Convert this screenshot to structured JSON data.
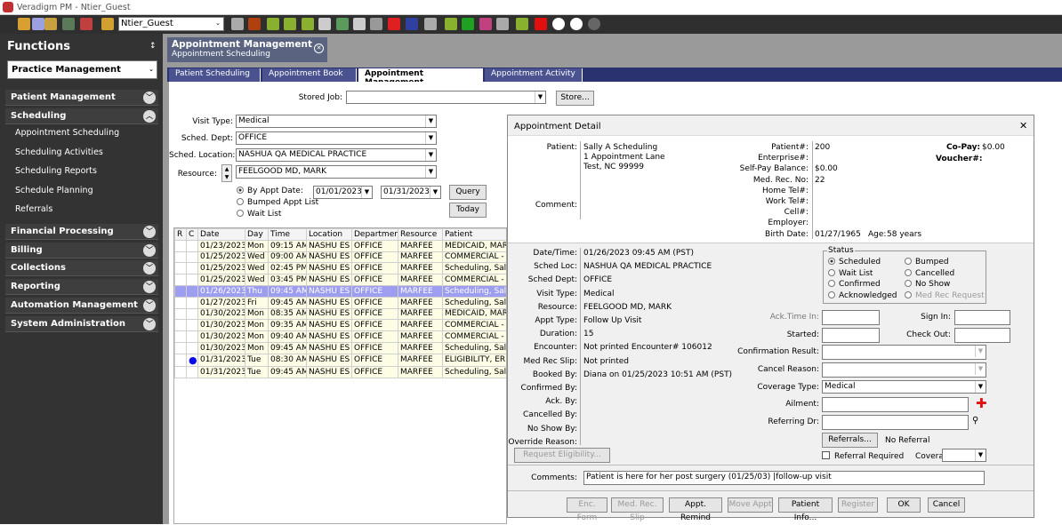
{
  "window": {
    "title": "Veradigm PM - Ntier_Guest"
  },
  "toolbar": {
    "user": "Ntier_Guest",
    "icons": [
      "open-folder-icon",
      "notes-icon",
      "folder-icon",
      "gear-icon",
      "settings-icon",
      "lock-icon",
      "stamp-icon",
      "cog-icon",
      "id-card-icon",
      "refresh-icon",
      "briefcase-icon",
      "edit-icon",
      "checkbook-icon",
      "document-icon",
      "transfer-icon",
      "medical-cross-icon",
      "rx-icon",
      "phone-icon",
      "h-document-icon",
      "calculator-icon",
      "chart-icon",
      "camera-icon",
      "diamond-icon",
      "msp-icon",
      "d-circle-icon",
      "t-circle-icon",
      "dollar-circle-icon"
    ]
  },
  "sidebar": {
    "title": "Functions",
    "pin": "↕",
    "selector": "Practice Management",
    "sections": [
      {
        "label": "Patient Management"
      },
      {
        "label": "Scheduling"
      },
      {
        "label": "Financial Processing"
      },
      {
        "label": "Billing"
      },
      {
        "label": "Collections"
      },
      {
        "label": "Reporting"
      },
      {
        "label": "Automation Management"
      },
      {
        "label": "System Administration"
      }
    ],
    "items": [
      "Appointment Scheduling",
      "Scheduling Activities",
      "Scheduling Reports",
      "Schedule Planning",
      "Referrals"
    ]
  },
  "doc_tab": {
    "title": "Appointment Management",
    "subtitle": "Appointment Scheduling"
  },
  "tabs": [
    "Patient Scheduling",
    "Appointment Book",
    "Appointment Management",
    "Appointment Activity"
  ],
  "form": {
    "stored_job_label": "Stored Job:",
    "stored_job": "",
    "store_btn": "Store...",
    "visit_type_label": "Visit Type:",
    "visit_type": "Medical",
    "dept_label": "Sched. Dept:",
    "dept": "OFFICE",
    "location_label": "Sched. Location:",
    "location": "NASHUA QA MEDICAL PRACTICE",
    "resource_label": "Resource:",
    "resource": "FEELGOOD MD, MARK",
    "radios": [
      "By Appt Date:",
      "Bumped Appt List",
      "Wait List"
    ],
    "date_from": "01/01/2023",
    "date_to": "01/31/2023",
    "query_btn": "Query",
    "today_btn": "Today"
  },
  "grid": {
    "columns": [
      "R",
      "C",
      "Date",
      "Day",
      "Time",
      "Location",
      "Department",
      "Resource",
      "Patient"
    ],
    "rows": [
      [
        "",
        "",
        "01/23/2023",
        "Mon",
        "09:15 AM",
        "NASHU ES",
        "OFFICE",
        "MARFEE",
        "MEDICAID, MARTHA"
      ],
      [
        "",
        "",
        "01/25/2023",
        "Wed",
        "09:00 AM",
        "NASHU ES",
        "OFFICE",
        "MARFEE",
        "COMMERCIAL - IND"
      ],
      [
        "",
        "",
        "01/25/2023",
        "Wed",
        "02:45 PM",
        "NASHU ES",
        "OFFICE",
        "MARFEE",
        "Scheduling, Sally A"
      ],
      [
        "",
        "",
        "01/25/2023",
        "Wed",
        "03:45 PM",
        "NASHU ES",
        "OFFICE",
        "MARFEE",
        "COMMERCIAL - IND"
      ],
      [
        "",
        "",
        "01/26/2023",
        "Thu",
        "09:45 AM",
        "NASHU ES",
        "OFFICE",
        "MARFEE",
        "Scheduling, Sally A"
      ],
      [
        "",
        "",
        "01/27/2023",
        "Fri",
        "09:45 AM",
        "NASHU ES",
        "OFFICE",
        "MARFEE",
        "Scheduling, Sally A"
      ],
      [
        "",
        "",
        "01/30/2023",
        "Mon",
        "08:35 AM",
        "NASHU ES",
        "OFFICE",
        "MARFEE",
        "MEDICAID, MARTHA"
      ],
      [
        "",
        "",
        "01/30/2023",
        "Mon",
        "09:35 AM",
        "NASHU ES",
        "OFFICE",
        "MARFEE",
        "COMMERCIAL - IND"
      ],
      [
        "",
        "",
        "01/30/2023",
        "Mon",
        "09:40 AM",
        "NASHU ES",
        "OFFICE",
        "MARFEE",
        "COMMERCIAL - IND"
      ],
      [
        "",
        "",
        "01/30/2023",
        "Mon",
        "09:45 AM",
        "NASHU ES",
        "OFFICE",
        "MARFEE",
        "Scheduling, Sally A"
      ],
      [
        "",
        "●",
        "01/31/2023",
        "Tue",
        "08:30 AM",
        "NASHU ES",
        "OFFICE",
        "MARFEE",
        "ELIGIBILITY, ERIC E"
      ],
      [
        "",
        "",
        "01/31/2023",
        "Tue",
        "09:45 AM",
        "NASHU ES",
        "OFFICE",
        "MARFEE",
        "Scheduling, Sally A"
      ]
    ],
    "selected_row": 4
  },
  "dialog": {
    "title": "Appointment Detail",
    "close": "✕",
    "patient_label": "Patient:",
    "patient_lines": [
      "Sally A Scheduling",
      "1 Appointment Lane",
      "Test, NC 99999"
    ],
    "comment_label": "Comment:",
    "info": [
      [
        "Patient#:",
        "200"
      ],
      [
        "Enterprise#:",
        ""
      ],
      [
        "Self-Pay Balance:",
        "$0.00"
      ],
      [
        "Med. Rec. No:",
        "22"
      ],
      [
        "Home Tel#:",
        ""
      ],
      [
        "Work Tel#:",
        ""
      ],
      [
        "Cell#:",
        ""
      ],
      [
        "Employer:",
        ""
      ],
      [
        "Birth Date:",
        "01/27/1965"
      ]
    ],
    "age_label": "Age:",
    "age": "58 years",
    "copay_label": "Co-Pay:",
    "copay": "$0.00",
    "voucher_label": "Voucher#:",
    "details": [
      [
        "Date/Time:",
        "01/26/2023 09:45 AM (PST)"
      ],
      [
        "Sched Loc:",
        "NASHUA QA MEDICAL PRACTICE"
      ],
      [
        "Sched Dept:",
        "OFFICE"
      ],
      [
        "Visit Type:",
        "Medical"
      ],
      [
        "Resource:",
        "FEELGOOD MD, MARK"
      ],
      [
        "Appt Type:",
        "Follow Up Visit"
      ],
      [
        "Duration:",
        "15"
      ],
      [
        "Encounter:",
        "Not printed Encounter# 106012"
      ],
      [
        "Med Rec Slip:",
        "Not printed"
      ],
      [
        "Booked By:",
        "Diana on 01/25/2023 10:51 AM (PST)"
      ],
      [
        "Confirmed By:",
        ""
      ],
      [
        "Ack. By:",
        ""
      ],
      [
        "Cancelled By:",
        ""
      ],
      [
        "No Show By:",
        ""
      ],
      [
        "Override Reason:",
        ""
      ]
    ],
    "request_elig": "Request Eligibility...",
    "status_label": "Status",
    "status": [
      "Scheduled",
      "Bumped",
      "Wait List",
      "Cancelled",
      "Confirmed",
      "No Show",
      "Acknowledged",
      "Med Rec Request"
    ],
    "status_selected": "Scheduled",
    "ack_time_label": "Ack.Time In:",
    "sign_in_label": "Sign In:",
    "started_label": "Started:",
    "check_out_label": "Check Out:",
    "confirmation_label": "Confirmation Result:",
    "cancel_reason_label": "Cancel Reason:",
    "coverage_type_label": "Coverage Type:",
    "coverage_type": "Medical",
    "ailment_label": "Ailment:",
    "referring_label": "Referring Dr:",
    "referrals_btn": "Referrals...",
    "no_referral": "No Referral",
    "referral_required": "Referral Required",
    "coverage_label": "Coverage:",
    "comments_label": "Comments:",
    "comments": "Patient is here for her post surgery (01/25/03) |follow-up visit",
    "buttons": [
      "Enc. Form",
      "Med. Rec. Slip",
      "Appt. Remind",
      "Move Appt",
      "Patient Info...",
      "Register",
      "OK",
      "Cancel"
    ]
  }
}
